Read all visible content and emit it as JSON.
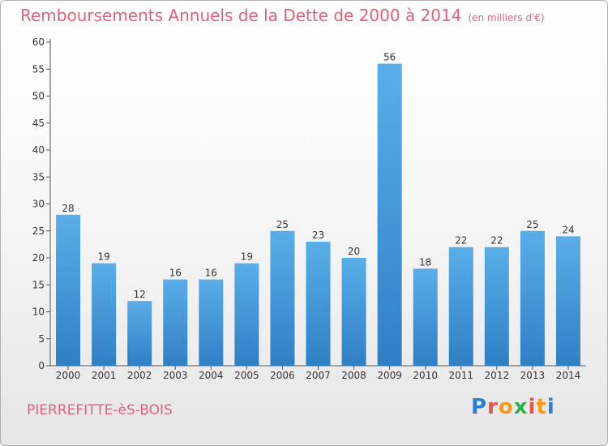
{
  "page": {
    "title": "Remboursements Annuels de la Dette de 2000 à 2014",
    "unit": "(en milliers d'€)",
    "commune": "PIERREFITTE-èS-BOIS",
    "logo_text": "Proxiti"
  },
  "chart_data": {
    "type": "bar",
    "categories": [
      "2000",
      "2001",
      "2002",
      "2003",
      "2004",
      "2005",
      "2006",
      "2007",
      "2008",
      "2009",
      "2010",
      "2011",
      "2012",
      "2013",
      "2014"
    ],
    "values": [
      28,
      19,
      12,
      16,
      16,
      19,
      25,
      23,
      20,
      56,
      18,
      22,
      22,
      25,
      24
    ],
    "ylim": [
      0,
      60
    ],
    "yticks": [
      0,
      5,
      10,
      15,
      20,
      25,
      30,
      35,
      40,
      45,
      50,
      55,
      60
    ],
    "grid": false,
    "colors": {
      "bar_light": "#5aaee8",
      "bar_dark": "#2f7fc6",
      "text": "#333333",
      "title": "#e0607a"
    }
  }
}
